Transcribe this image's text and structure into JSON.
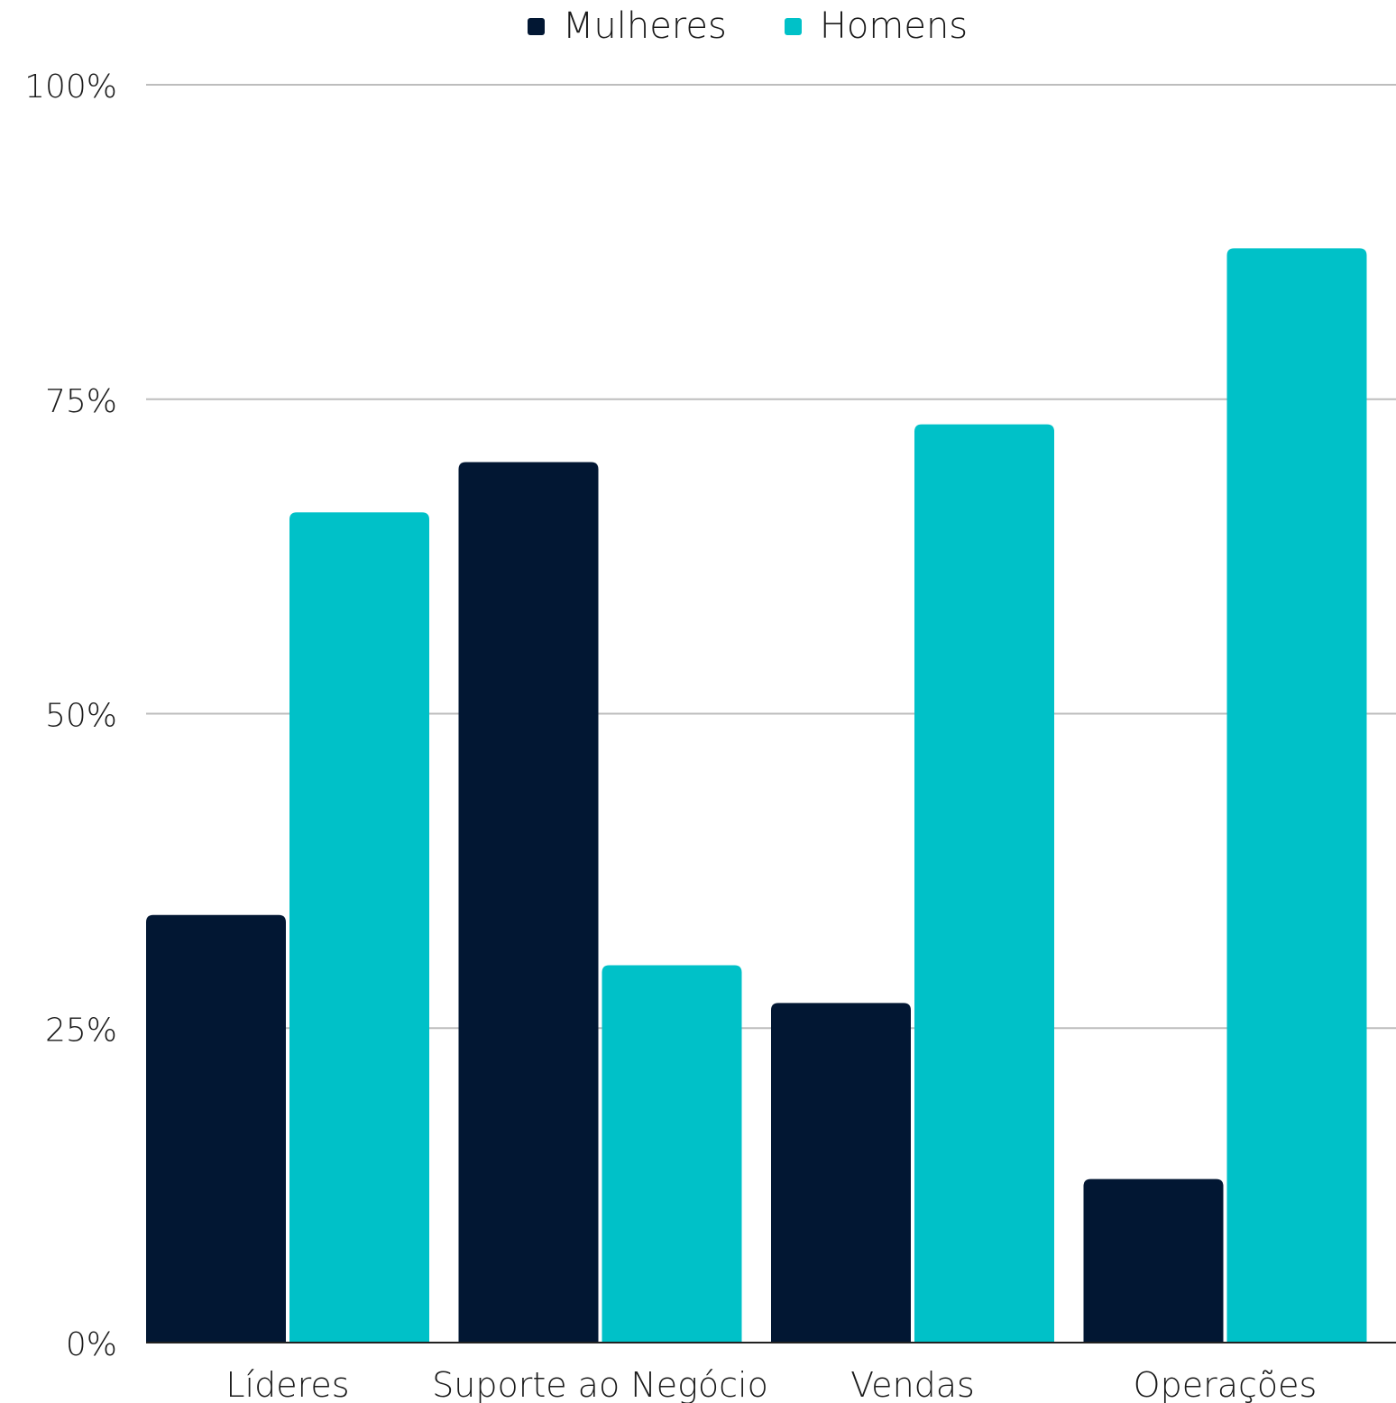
{
  "chart_data": {
    "type": "bar",
    "categories": [
      "Líderes",
      "Suporte ao Negócio",
      "Vendas",
      "Operações"
    ],
    "series": [
      {
        "name": "Mulheres",
        "color": "#021733",
        "values": [
          34,
          70,
          27,
          13
        ]
      },
      {
        "name": "Homens",
        "color": "#00C1C8",
        "values": [
          66,
          30,
          73,
          87
        ]
      }
    ],
    "ylim": [
      0,
      100
    ],
    "yticks": [
      0,
      25,
      50,
      75,
      100
    ],
    "ytick_labels": [
      "0%",
      "25%",
      "50%",
      "75%",
      "100%"
    ],
    "grid": true,
    "legend_position": "top-center"
  }
}
